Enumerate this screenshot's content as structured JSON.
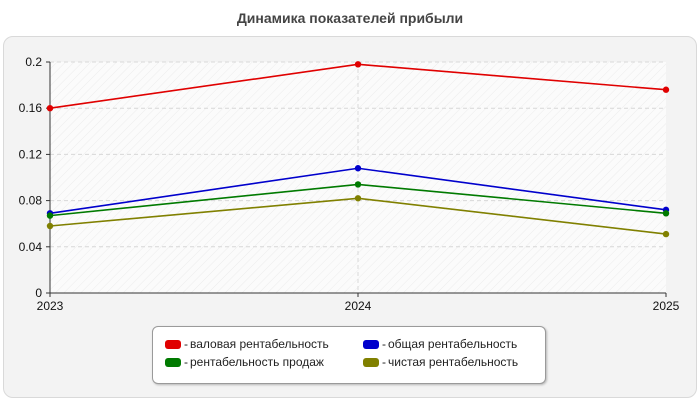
{
  "chart_data": {
    "type": "line",
    "title": "Динамика показателей прибыли",
    "xlabel": "",
    "ylabel": "",
    "categories": [
      "2023",
      "2024",
      "2025"
    ],
    "ylim": [
      0,
      0.2
    ],
    "yticks": [
      "0",
      "0.04",
      "0.08",
      "0.12",
      "0.16",
      "0.2"
    ],
    "grid": true,
    "legend_position": "bottom",
    "series": [
      {
        "name": "валовая рентабельность",
        "color": "#e00000",
        "values": [
          0.16,
          0.198,
          0.176
        ]
      },
      {
        "name": "общая рентабельность",
        "color": "#0000cc",
        "values": [
          0.069,
          0.108,
          0.072
        ]
      },
      {
        "name": "рентабельность продаж",
        "color": "#007a00",
        "values": [
          0.067,
          0.094,
          0.069
        ]
      },
      {
        "name": "чистая рентабельность",
        "color": "#808000",
        "values": [
          0.058,
          0.082,
          0.051
        ]
      }
    ]
  },
  "legend": {
    "prefix": "-"
  }
}
